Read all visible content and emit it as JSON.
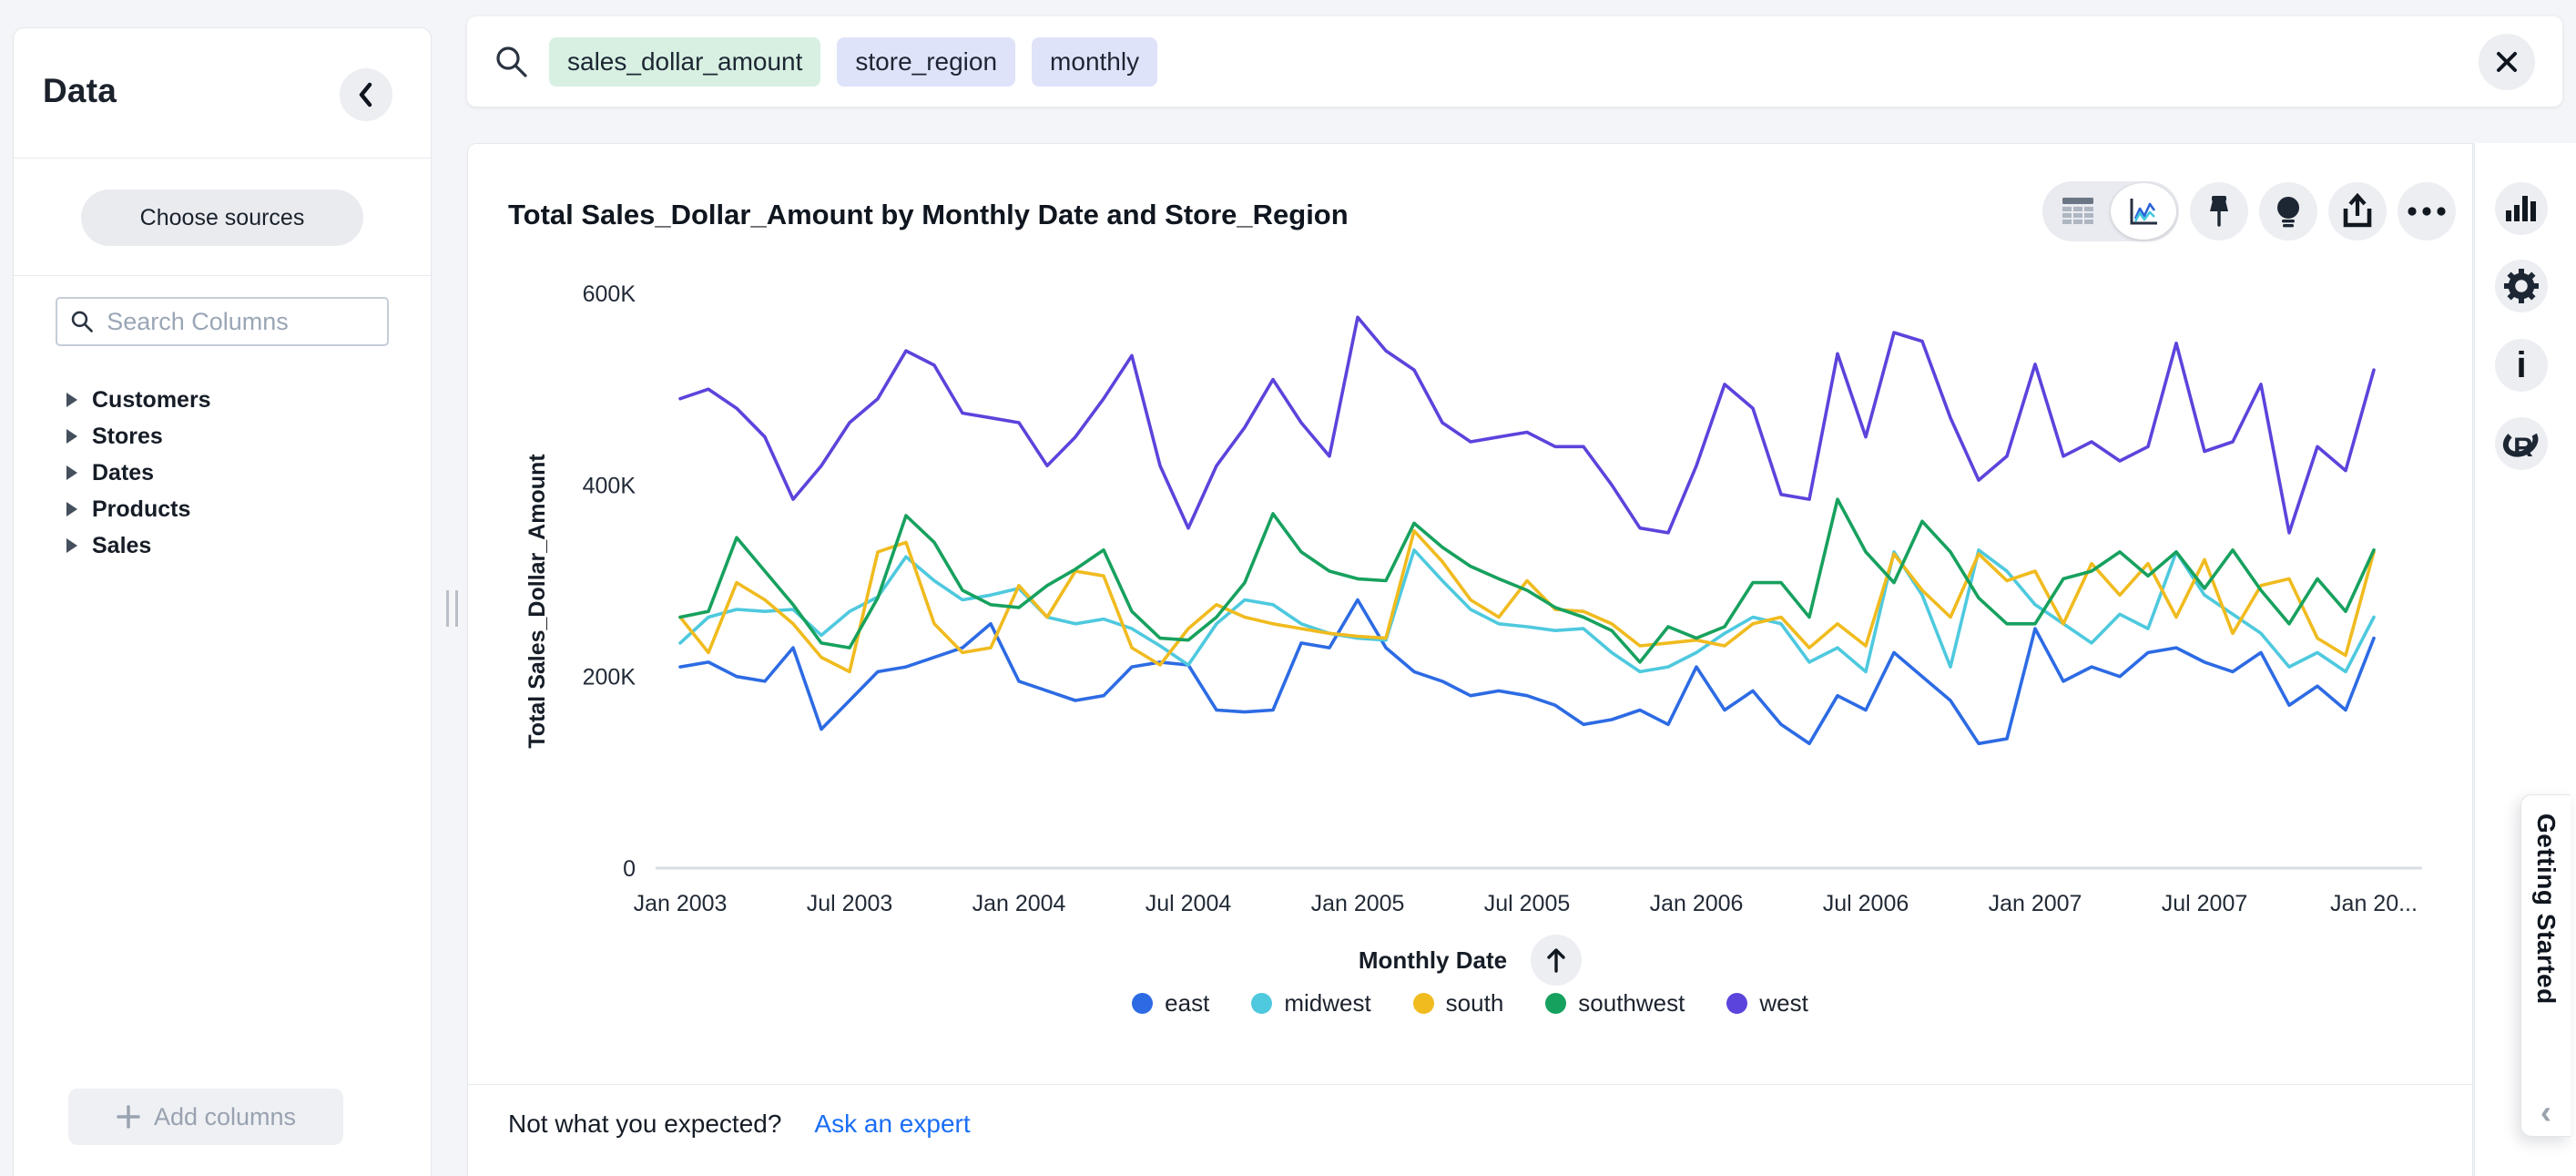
{
  "sidebar": {
    "title": "Data",
    "choose_sources_label": "Choose sources",
    "search_placeholder": "Search Columns",
    "tree_items": [
      {
        "label": "Customers"
      },
      {
        "label": "Stores"
      },
      {
        "label": "Dates"
      },
      {
        "label": "Products"
      },
      {
        "label": "Sales"
      }
    ],
    "add_columns_label": "Add columns"
  },
  "search_bar": {
    "tokens": [
      {
        "text": "sales_dollar_amount",
        "bg": "#d7f0e2"
      },
      {
        "text": "store_region",
        "bg": "#dee3f9"
      },
      {
        "text": "monthly",
        "bg": "#dee3f9"
      }
    ]
  },
  "main": {
    "title": "Total Sales_Dollar_Amount by Monthly Date and Store_Region",
    "footer": {
      "question": "Not what you expected?",
      "link": "Ask an expert"
    }
  },
  "getting_started": {
    "label": "Getting Started"
  },
  "chart_data": {
    "type": "line",
    "title": "Total Sales_Dollar_Amount by Monthly Date and Store_Region",
    "xlabel": "Monthly Date",
    "ylabel": "Total Sales_Dollar_Amount",
    "x_start": "Jan 2003",
    "x_end": "Jan 2008",
    "x_interval": "month",
    "ylim_k": [
      0,
      600
    ],
    "grid": false,
    "legend_position": "bottom",
    "y_ticks": [
      {
        "v": 0,
        "label": "0"
      },
      {
        "v": 200,
        "label": "200K"
      },
      {
        "v": 400,
        "label": "400K"
      },
      {
        "v": 600,
        "label": "600K"
      }
    ],
    "x_ticks": [
      {
        "m": 0,
        "label": "Jan 2003"
      },
      {
        "m": 6,
        "label": "Jul 2003"
      },
      {
        "m": 12,
        "label": "Jan 2004"
      },
      {
        "m": 18,
        "label": "Jul 2004"
      },
      {
        "m": 24,
        "label": "Jan 2005"
      },
      {
        "m": 30,
        "label": "Jul 2005"
      },
      {
        "m": 36,
        "label": "Jan 2006"
      },
      {
        "m": 42,
        "label": "Jul 2006"
      },
      {
        "m": 48,
        "label": "Jan 2007"
      },
      {
        "m": 54,
        "label": "Jul 2007"
      },
      {
        "m": 60,
        "label": "Jan 20..."
      }
    ],
    "series": [
      {
        "name": "east",
        "color": "#2d6be4",
        "values_k": [
          210,
          215,
          200,
          195,
          230,
          145,
          175,
          205,
          210,
          220,
          230,
          255,
          195,
          185,
          175,
          180,
          210,
          215,
          212,
          165,
          163,
          165,
          235,
          230,
          280,
          230,
          205,
          195,
          180,
          185,
          180,
          170,
          150,
          155,
          165,
          150,
          210,
          165,
          185,
          150,
          130,
          180,
          165,
          225,
          200,
          175,
          130,
          135,
          250,
          195,
          210,
          200,
          225,
          230,
          215,
          205,
          225,
          170,
          190,
          165,
          240
        ]
      },
      {
        "name": "midwest",
        "color": "#4ec9de",
        "values_k": [
          235,
          262,
          270,
          268,
          270,
          243,
          268,
          283,
          325,
          300,
          280,
          285,
          292,
          262,
          255,
          260,
          250,
          232,
          212,
          255,
          280,
          275,
          255,
          245,
          240,
          238,
          332,
          300,
          270,
          255,
          252,
          248,
          250,
          225,
          205,
          210,
          225,
          245,
          262,
          255,
          215,
          230,
          205,
          330,
          285,
          210,
          332,
          310,
          275,
          255,
          235,
          265,
          250,
          330,
          285,
          265,
          245,
          210,
          225,
          205,
          262
        ]
      },
      {
        "name": "south",
        "color": "#f0bb1f",
        "values_k": [
          262,
          225,
          298,
          280,
          255,
          220,
          205,
          330,
          340,
          255,
          225,
          230,
          295,
          262,
          310,
          305,
          230,
          212,
          250,
          275,
          262,
          255,
          250,
          245,
          242,
          240,
          352,
          320,
          280,
          262,
          300,
          270,
          268,
          255,
          232,
          235,
          238,
          232,
          255,
          262,
          230,
          255,
          232,
          328,
          290,
          262,
          328,
          300,
          310,
          255,
          318,
          285,
          318,
          262,
          322,
          245,
          295,
          302,
          240,
          222,
          330
        ]
      },
      {
        "name": "southwest",
        "color": "#17a15e",
        "values_k": [
          262,
          268,
          345,
          310,
          275,
          235,
          230,
          282,
          368,
          340,
          290,
          275,
          272,
          295,
          312,
          332,
          268,
          240,
          238,
          262,
          298,
          370,
          330,
          310,
          302,
          300,
          360,
          335,
          315,
          302,
          290,
          272,
          262,
          248,
          215,
          252,
          240,
          252,
          298,
          298,
          262,
          385,
          330,
          298,
          362,
          330,
          282,
          255,
          255,
          302,
          310,
          330,
          305,
          330,
          292,
          332,
          290,
          255,
          302,
          268,
          332
        ]
      },
      {
        "name": "west",
        "color": "#5b44dc",
        "values_k": [
          490,
          500,
          480,
          450,
          385,
          420,
          465,
          490,
          540,
          525,
          475,
          470,
          465,
          420,
          450,
          490,
          535,
          420,
          355,
          420,
          460,
          510,
          465,
          430,
          575,
          540,
          520,
          465,
          445,
          450,
          455,
          440,
          440,
          400,
          355,
          350,
          420,
          505,
          480,
          390,
          385,
          537,
          450,
          559,
          550,
          470,
          405,
          430,
          526,
          430,
          445,
          425,
          440,
          548,
          435,
          445,
          505,
          350,
          440,
          415,
          520
        ]
      }
    ]
  }
}
